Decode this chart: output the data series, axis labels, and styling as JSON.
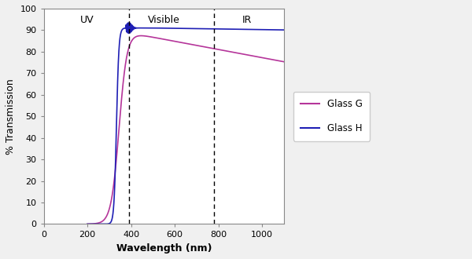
{
  "title": "",
  "xlabel": "Wavelength (nm)",
  "ylabel": "% Transmission",
  "xlim": [
    0,
    1100
  ],
  "ylim": [
    0,
    100
  ],
  "xticks": [
    0,
    200,
    400,
    600,
    800,
    1000
  ],
  "yticks": [
    0,
    10,
    20,
    30,
    40,
    50,
    60,
    70,
    80,
    90,
    100
  ],
  "uv_label": "UV",
  "visible_label": "Visible",
  "ir_label": "IR",
  "uv_x": 200,
  "visible_x": 550,
  "ir_x": 930,
  "vline1_x": 390,
  "vline2_x": 780,
  "glass_g_color": "#b5359a",
  "glass_h_color": "#1f1fb5",
  "legend_labels": [
    "Glass G",
    "Glass H"
  ],
  "background_color": "#f0f0f0",
  "plot_bg_color": "#ffffff",
  "border_color": "#aaaaaa"
}
